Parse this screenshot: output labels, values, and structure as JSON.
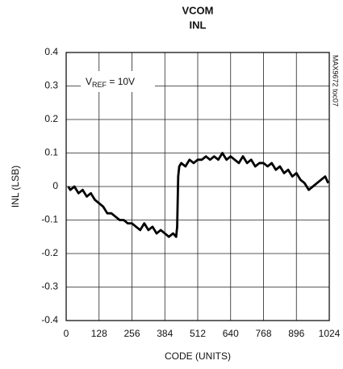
{
  "chart_data": {
    "type": "line",
    "title": [
      "VCOM",
      "INL"
    ],
    "xlabel": "CODE (UNITS)",
    "ylabel": "INL (LSB)",
    "annotation": [
      "V",
      "REF",
      " = 10V"
    ],
    "side_note": "MAX9672 toc07",
    "x": [
      8,
      16,
      32,
      48,
      64,
      80,
      96,
      112,
      128,
      144,
      160,
      176,
      192,
      208,
      224,
      240,
      256,
      272,
      288,
      304,
      320,
      336,
      352,
      368,
      384,
      400,
      416,
      428,
      432,
      436,
      440,
      448,
      464,
      480,
      496,
      512,
      528,
      544,
      560,
      576,
      592,
      608,
      624,
      640,
      656,
      672,
      688,
      704,
      720,
      736,
      752,
      768,
      784,
      800,
      816,
      832,
      848,
      864,
      880,
      896,
      912,
      928,
      944,
      960,
      976,
      992,
      1008,
      1020
    ],
    "series": [
      {
        "name": "INL",
        "color": "#000000",
        "values": [
          0,
          -0.01,
          0,
          -0.02,
          -0.01,
          -0.03,
          -0.02,
          -0.04,
          -0.05,
          -0.06,
          -0.08,
          -0.08,
          -0.09,
          -0.1,
          -0.1,
          -0.11,
          -0.11,
          -0.12,
          -0.13,
          -0.11,
          -0.13,
          -0.12,
          -0.14,
          -0.13,
          -0.14,
          -0.15,
          -0.14,
          -0.15,
          -0.12,
          0.03,
          0.06,
          0.07,
          0.06,
          0.08,
          0.07,
          0.08,
          0.08,
          0.09,
          0.08,
          0.09,
          0.08,
          0.1,
          0.08,
          0.09,
          0.08,
          0.07,
          0.09,
          0.07,
          0.08,
          0.06,
          0.07,
          0.07,
          0.06,
          0.07,
          0.05,
          0.06,
          0.04,
          0.05,
          0.03,
          0.04,
          0.02,
          0.01,
          -0.01,
          0,
          0.01,
          0.02,
          0.03,
          0.01
        ]
      }
    ],
    "xlim": [
      0,
      1024
    ],
    "xticks": [
      0,
      128,
      256,
      384,
      512,
      640,
      768,
      896,
      1024
    ],
    "ylim": [
      -0.4,
      0.4
    ],
    "yticks": [
      0.4,
      0.3,
      0.2,
      0.1,
      0,
      -0.1,
      -0.2,
      -0.3,
      -0.4
    ],
    "grid": true
  }
}
